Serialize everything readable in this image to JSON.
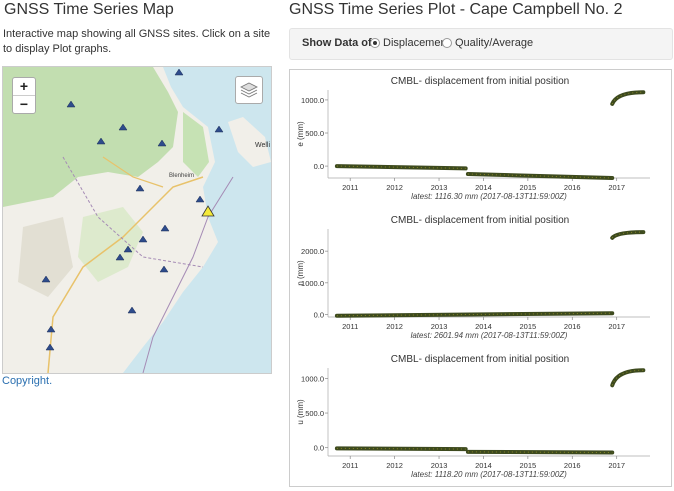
{
  "map_section": {
    "title": "GNSS Time Series Map",
    "description": "Interactive map showing all GNSS sites. Click on a site to display Plot graphs.",
    "zoom_in": "+",
    "zoom_out": "−",
    "copyright": "Copyright.",
    "labels": {
      "town": "Blenheim",
      "city": "Welli"
    },
    "colors": {
      "sea": "#cde6ee",
      "land": "#f1efe9",
      "forest": "#bcdcaa",
      "marker": "#2e4c8c",
      "selected": "#f5ea3a"
    }
  },
  "plot_section": {
    "title": "GNSS Time Series Plot - Cape Campbell No. 2",
    "show_data_label": "Show Data of",
    "options": [
      {
        "label": "Displacement",
        "selected": true
      },
      {
        "label": "Quality/Average",
        "selected": false
      }
    ]
  },
  "chart_data": [
    {
      "type": "scatter",
      "title": "CMBL- displacement from initial position",
      "ylabel": "e (mm)",
      "xlabel": "latest: 1116.30 mm (2017-08-13T11:59:00Z)",
      "x_ticks": [
        "2011",
        "2012",
        "2013",
        "2014",
        "2015",
        "2016",
        "2017"
      ],
      "y_ticks": [
        "0.0",
        "500.0",
        "1000.0"
      ],
      "xlim": [
        2010.5,
        2017.75
      ],
      "ylim": [
        -180,
        1150
      ],
      "segments": [
        {
          "from": [
            2010.7,
            0
          ],
          "to": [
            2013.6,
            -35
          ]
        },
        {
          "from": [
            2013.65,
            -120
          ],
          "to": [
            2016.9,
            -180
          ]
        },
        {
          "step_curve": true,
          "from": [
            2016.9,
            940
          ],
          "to": [
            2017.6,
            1116.3
          ]
        }
      ],
      "marker_color": "#3d4a1e"
    },
    {
      "type": "scatter",
      "title": "CMBL- displacement from initial position",
      "ylabel": "n (mm)",
      "xlabel": "latest: 2601.94 mm (2017-08-13T11:59:00Z)",
      "x_ticks": [
        "2011",
        "2012",
        "2013",
        "2014",
        "2015",
        "2016",
        "2017"
      ],
      "y_ticks": [
        "0.0",
        "1000.0",
        "2000.0"
      ],
      "xlim": [
        2010.5,
        2017.75
      ],
      "ylim": [
        -80,
        2700
      ],
      "segments": [
        {
          "from": [
            2010.7,
            -40
          ],
          "to": [
            2016.9,
            40
          ]
        },
        {
          "step_curve": true,
          "from": [
            2016.9,
            2420
          ],
          "to": [
            2017.6,
            2601.94
          ]
        }
      ],
      "marker_color": "#3d4a1e"
    },
    {
      "type": "scatter",
      "title": "CMBL- displacement from initial position",
      "ylabel": "u (mm)",
      "xlabel": "latest: 1118.20 mm (2017-08-13T11:59:00Z)",
      "x_ticks": [
        "2011",
        "2012",
        "2013",
        "2014",
        "2015",
        "2016",
        "2017"
      ],
      "y_ticks": [
        "0.0",
        "500.0",
        "1000.0"
      ],
      "xlim": [
        2010.5,
        2017.75
      ],
      "ylim": [
        -120,
        1150
      ],
      "segments": [
        {
          "from": [
            2010.7,
            -10
          ],
          "to": [
            2013.6,
            -20
          ]
        },
        {
          "from": [
            2013.65,
            -60
          ],
          "to": [
            2016.9,
            -70
          ]
        },
        {
          "step_curve": true,
          "from": [
            2016.9,
            900
          ],
          "to": [
            2017.6,
            1118.2
          ]
        }
      ],
      "marker_color": "#3d4a1e"
    }
  ]
}
